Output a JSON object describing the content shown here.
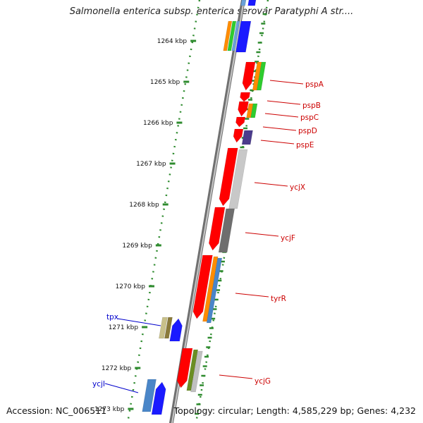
{
  "title": "Salmonella enterica subsp. enterica serovar Paratyphi A str....",
  "footer": {
    "accession": "Accession: NC_006511",
    "summary": "Topology: circular; Length: 4,585,229 bp; Genes: 4,232"
  },
  "colors": {
    "backbone": "#8a8a8a",
    "ruler_dots": "#2e8b2e",
    "gene_label_right": "#cc0000",
    "gene_label_left": "#0000cc"
  },
  "ruler": {
    "ticks": [
      {
        "kbp": 1264,
        "label": "1264 kbp"
      },
      {
        "kbp": 1265,
        "label": "1265 kbp"
      },
      {
        "kbp": 1266,
        "label": "1266 kbp"
      },
      {
        "kbp": 1267,
        "label": "1267 kbp"
      },
      {
        "kbp": 1268,
        "label": "1268 kbp"
      },
      {
        "kbp": 1269,
        "label": "1269 kbp"
      },
      {
        "kbp": 1270,
        "label": "1270 kbp"
      },
      {
        "kbp": 1271,
        "label": "1271 kbp"
      },
      {
        "kbp": 1272,
        "label": "1272 kbp"
      },
      {
        "kbp": 1273,
        "label": "1273 kbp"
      }
    ]
  },
  "genes": [
    {
      "name": "pspA",
      "side": "right"
    },
    {
      "name": "pspB",
      "side": "right"
    },
    {
      "name": "pspC",
      "side": "right"
    },
    {
      "name": "pspD",
      "side": "right"
    },
    {
      "name": "pspE",
      "side": "right"
    },
    {
      "name": "ycjX",
      "side": "right"
    },
    {
      "name": "ycjF",
      "side": "right"
    },
    {
      "name": "tyrR",
      "side": "right"
    },
    {
      "name": "ycjG",
      "side": "right"
    },
    {
      "name": "tpx",
      "side": "left"
    },
    {
      "name": "ycjI",
      "side": "left"
    }
  ]
}
